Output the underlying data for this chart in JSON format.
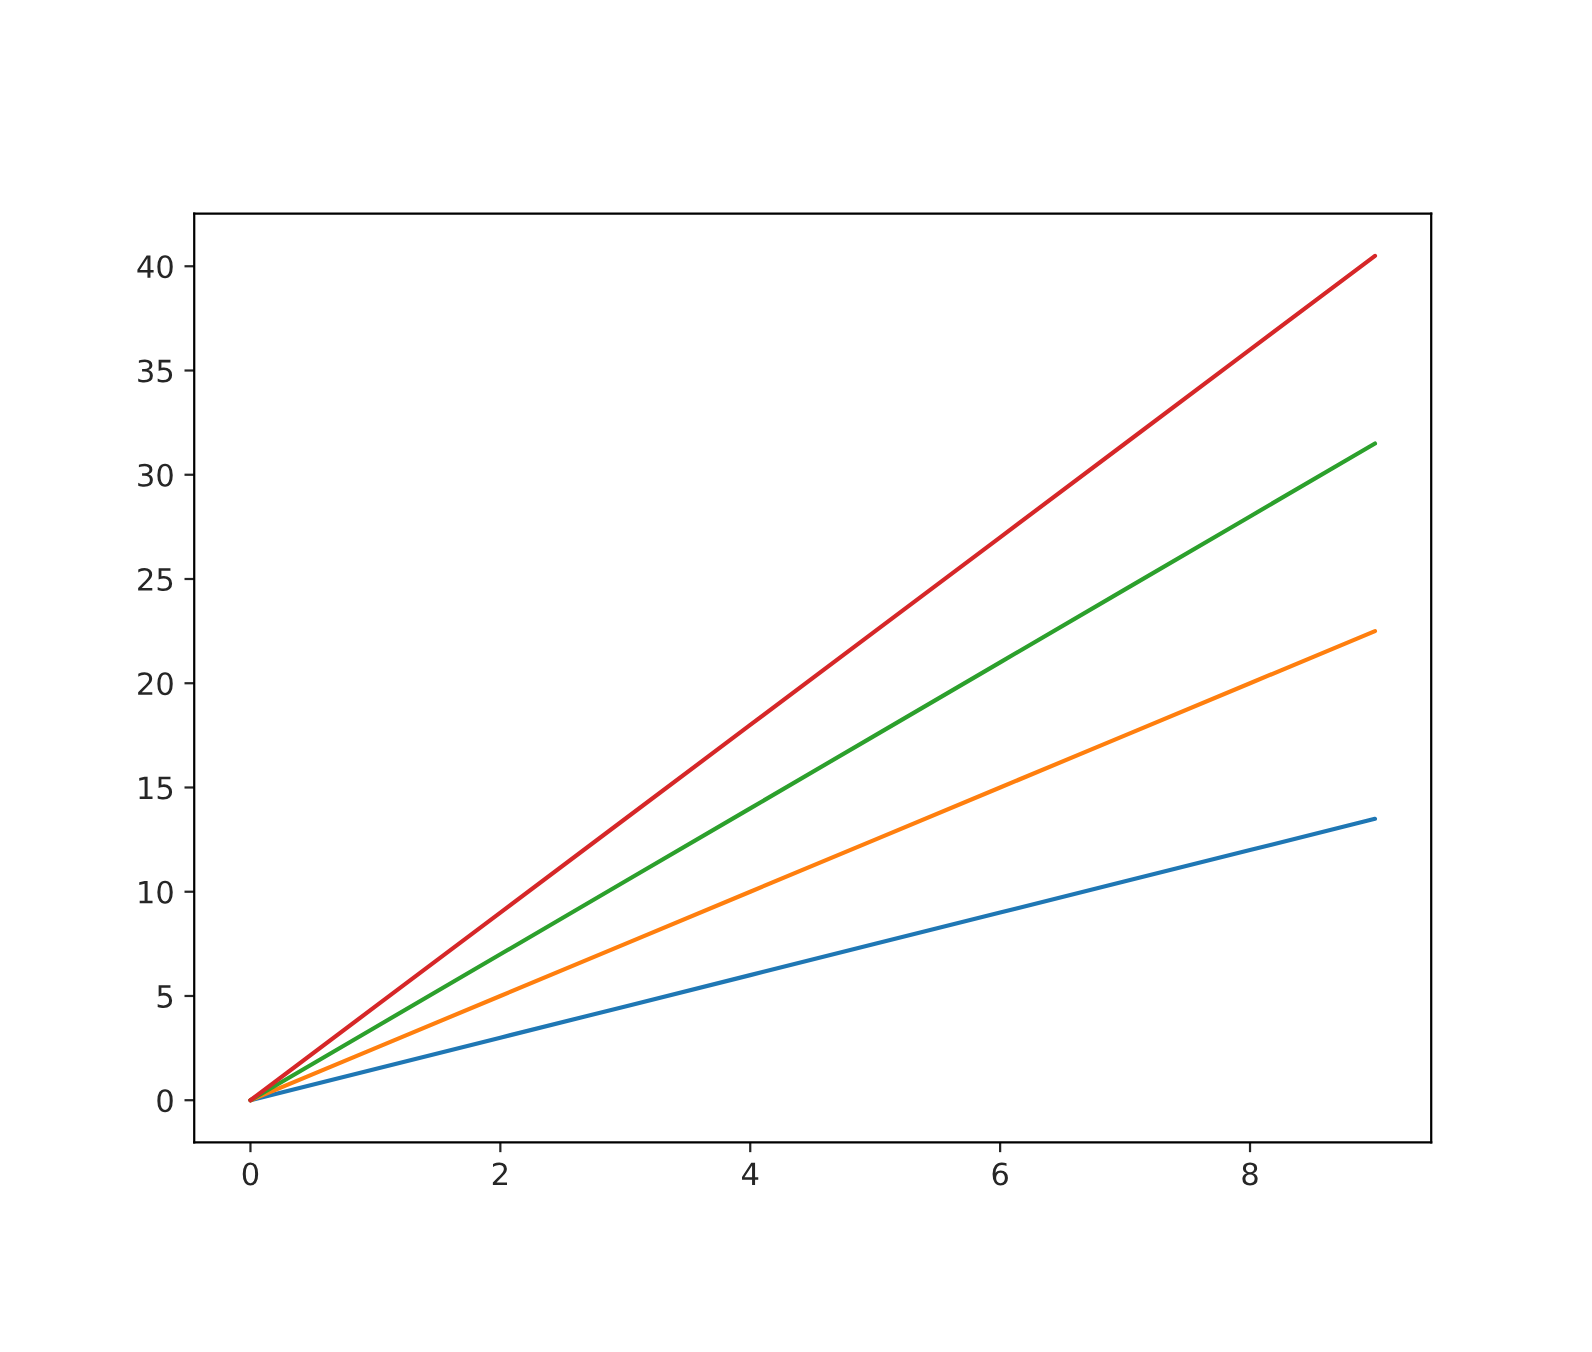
{
  "chart_data": {
    "type": "line",
    "x": [
      0,
      1,
      2,
      3,
      4,
      5,
      6,
      7,
      8,
      9
    ],
    "series": [
      {
        "color": "#1f77b4",
        "values": [
          0,
          1.5,
          3,
          4.5,
          6,
          7.5,
          9,
          10.5,
          12,
          13.5
        ]
      },
      {
        "color": "#ff7f0e",
        "values": [
          0,
          2.5,
          5,
          7.5,
          10,
          12.5,
          15,
          17.5,
          20,
          22.5
        ]
      },
      {
        "color": "#2ca02c",
        "values": [
          0,
          3.5,
          7,
          10.5,
          14,
          17.5,
          21,
          24.5,
          28,
          31.5
        ]
      },
      {
        "color": "#d62728",
        "values": [
          0,
          4.5,
          9,
          13.5,
          18,
          22.5,
          27,
          31.5,
          36,
          40.5
        ]
      }
    ],
    "xlim": [
      -0.45,
      9.45
    ],
    "ylim": [
      -2.025,
      42.525
    ],
    "xticks": [
      0,
      2,
      4,
      6,
      8
    ],
    "yticks": [
      0,
      5,
      10,
      15,
      20,
      25,
      30,
      35,
      40
    ],
    "grid": false,
    "marker": "none",
    "line_style": "solid"
  }
}
